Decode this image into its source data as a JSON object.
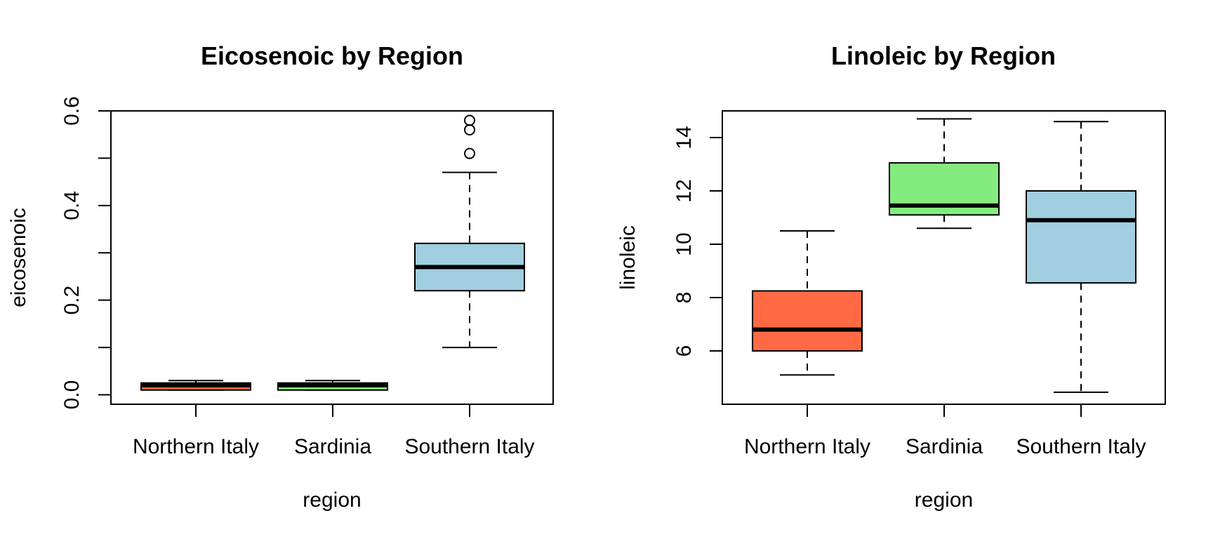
{
  "chart_data": [
    {
      "type": "boxplot",
      "title": "Eicosenoic by Region",
      "xlabel": "region",
      "ylabel": "eicosenoic",
      "categories": [
        "Northern Italy",
        "Sardinia",
        "Southern Italy"
      ],
      "colors": [
        "#FF6A45",
        "#84EB7E",
        "#A1CFE0"
      ],
      "ylim": [
        -0.02,
        0.6
      ],
      "yticks": [
        "0.0",
        "0.2",
        "0.4",
        "0.6"
      ],
      "ytick_values": [
        0.0,
        0.1,
        0.2,
        0.3,
        0.4,
        0.5,
        0.6
      ],
      "ytick_label_values": [
        0.0,
        0.2,
        0.4,
        0.6
      ],
      "boxes": [
        {
          "category": "Northern Italy",
          "min": 0.01,
          "q1": 0.01,
          "median": 0.02,
          "q3": 0.025,
          "max": 0.03,
          "outliers": []
        },
        {
          "category": "Sardinia",
          "min": 0.01,
          "q1": 0.01,
          "median": 0.02,
          "q3": 0.025,
          "max": 0.03,
          "outliers": []
        },
        {
          "category": "Southern Italy",
          "min": 0.1,
          "q1": 0.22,
          "median": 0.27,
          "q3": 0.32,
          "max": 0.47,
          "outliers": [
            0.51,
            0.56,
            0.58
          ]
        }
      ]
    },
    {
      "type": "boxplot",
      "title": "Linoleic by Region",
      "xlabel": "region",
      "ylabel": "linoleic",
      "categories": [
        "Northern Italy",
        "Sardinia",
        "Southern Italy"
      ],
      "colors": [
        "#FF6A45",
        "#84EB7E",
        "#A1CFE0"
      ],
      "ylim": [
        4.0,
        15.0
      ],
      "yticks": [
        "6",
        "8",
        "10",
        "12",
        "14"
      ],
      "ytick_values": [
        6,
        8,
        10,
        12,
        14
      ],
      "ytick_label_values": [
        6,
        8,
        10,
        12,
        14
      ],
      "boxes": [
        {
          "category": "Northern Italy",
          "min": 5.1,
          "q1": 6.0,
          "median": 6.8,
          "q3": 8.25,
          "max": 10.5,
          "outliers": []
        },
        {
          "category": "Sardinia",
          "min": 10.6,
          "q1": 11.1,
          "median": 11.45,
          "q3": 13.05,
          "max": 14.7,
          "outliers": []
        },
        {
          "category": "Southern Italy",
          "min": 4.45,
          "q1": 8.55,
          "median": 10.9,
          "q3": 12.0,
          "max": 14.6,
          "outliers": []
        }
      ]
    }
  ]
}
